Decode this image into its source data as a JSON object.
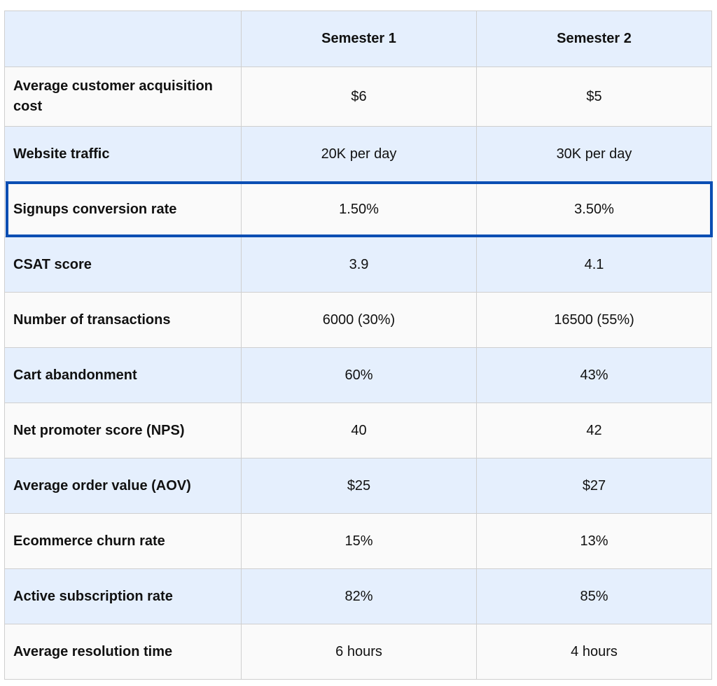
{
  "table": {
    "headers": [
      "",
      "Semester 1",
      "Semester 2"
    ],
    "rows": [
      {
        "metric": "Average customer acquisition cost",
        "s1": "$6",
        "s2": "$5"
      },
      {
        "metric": "Website traffic",
        "s1": "20K per day",
        "s2": "30K per day"
      },
      {
        "metric": "Signups conversion rate",
        "s1": "1.50%",
        "s2": "3.50%"
      },
      {
        "metric": "CSAT score",
        "s1": "3.9",
        "s2": "4.1"
      },
      {
        "metric": "Number of transactions",
        "s1": "6000 (30%)",
        "s2": "16500 (55%)"
      },
      {
        "metric": "Cart abandonment",
        "s1": "60%",
        "s2": "43%"
      },
      {
        "metric": "Net promoter score (NPS)",
        "s1": "40",
        "s2": "42"
      },
      {
        "metric": "Average order value (AOV)",
        "s1": "$25",
        "s2": "$27"
      },
      {
        "metric": "Ecommerce churn rate",
        "s1": "15%",
        "s2": "13%"
      },
      {
        "metric": "Active subscription rate",
        "s1": "82%",
        "s2": "85%"
      },
      {
        "metric": "Average resolution time",
        "s1": "6 hours",
        "s2": "4 hours"
      }
    ]
  },
  "highlight": {
    "row_metric": "Signups conversion rate",
    "color": "#0b4eb3"
  },
  "colors": {
    "header_bg": "#e5effd",
    "alt_bg": "#fafafa",
    "grid": "#cfcfcf"
  }
}
